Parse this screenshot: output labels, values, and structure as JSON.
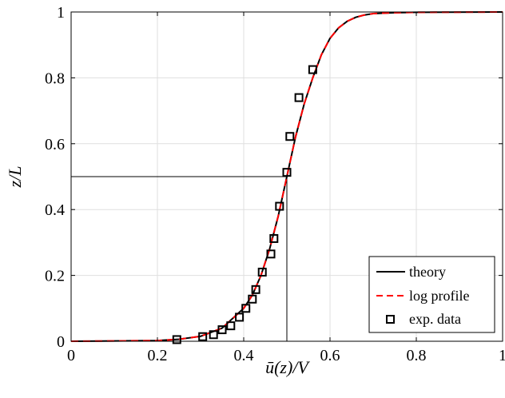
{
  "chart_data": {
    "type": "line",
    "title": "",
    "xlabel": "ū(z)/V",
    "ylabel": "z/L",
    "xlim": [
      0,
      1
    ],
    "ylim": [
      0,
      1
    ],
    "xticks": [
      "0",
      "0.2",
      "0.4",
      "0.6",
      "0.8",
      "1"
    ],
    "yticks": [
      "0",
      "0.2",
      "0.4",
      "0.6",
      "0.8",
      "1"
    ],
    "grid": true,
    "legend_position": "bottom-right",
    "reference_point": {
      "x": 0.5,
      "y": 0.5
    },
    "series": [
      {
        "name": "theory",
        "style": "solid",
        "color": "#000000",
        "x": [
          0.0,
          0.2,
          0.25,
          0.3,
          0.35,
          0.4,
          0.42,
          0.44,
          0.46,
          0.48,
          0.5,
          0.52,
          0.54,
          0.56,
          0.58,
          0.6,
          0.62,
          0.64,
          0.66,
          0.68,
          0.7,
          0.75,
          0.8,
          1.0
        ],
        "y": [
          0.0,
          0.002,
          0.006,
          0.015,
          0.04,
          0.1,
          0.14,
          0.2,
          0.28,
          0.38,
          0.5,
          0.62,
          0.72,
          0.8,
          0.87,
          0.92,
          0.952,
          0.972,
          0.984,
          0.991,
          0.995,
          0.998,
          0.999,
          1.0
        ]
      },
      {
        "name": "log profile",
        "style": "dashed",
        "color": "#ff0000",
        "x": [
          0.0,
          0.2,
          0.25,
          0.3,
          0.35,
          0.4,
          0.42,
          0.44,
          0.46,
          0.48,
          0.5,
          0.52,
          0.54,
          0.56,
          0.58,
          0.6,
          0.62,
          0.64,
          0.66,
          0.68,
          0.7,
          0.75,
          0.8,
          1.0
        ],
        "y": [
          0.0,
          0.002,
          0.006,
          0.015,
          0.04,
          0.1,
          0.14,
          0.2,
          0.28,
          0.38,
          0.5,
          0.62,
          0.72,
          0.8,
          0.87,
          0.92,
          0.952,
          0.972,
          0.984,
          0.991,
          0.995,
          0.998,
          0.999,
          1.0
        ]
      },
      {
        "name": "exp. data",
        "style": "square-markers",
        "color": "#000000",
        "x": [
          0.245,
          0.305,
          0.33,
          0.35,
          0.37,
          0.39,
          0.405,
          0.42,
          0.428,
          0.443,
          0.463,
          0.47,
          0.483,
          0.5,
          0.507,
          0.528,
          0.56
        ],
        "y": [
          0.005,
          0.014,
          0.02,
          0.035,
          0.047,
          0.073,
          0.1,
          0.128,
          0.157,
          0.21,
          0.265,
          0.312,
          0.41,
          0.513,
          0.622,
          0.74,
          0.825
        ]
      }
    ]
  }
}
